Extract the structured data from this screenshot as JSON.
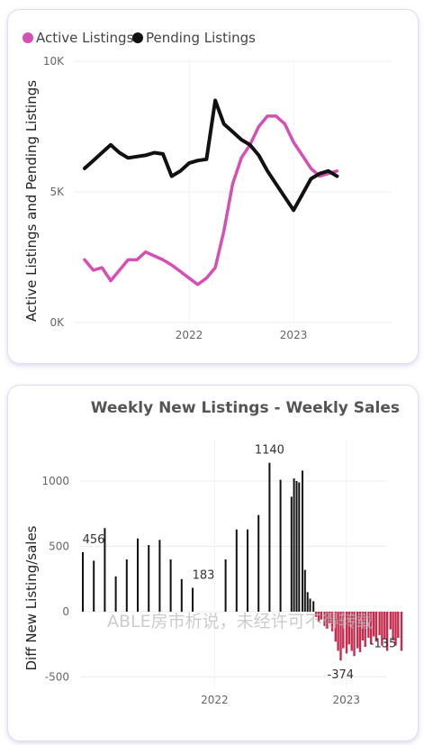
{
  "chart_data": [
    {
      "type": "line",
      "legend": [
        "Active Listings",
        "Pending Listings"
      ],
      "legend_position": "top-left",
      "xlabel": "",
      "ylabel": "Active Listings and Pending Listings",
      "ylim": [
        0,
        10000
      ],
      "yticks": [
        0,
        5000,
        10000
      ],
      "ytick_labels": [
        "0K",
        "5K",
        "10K"
      ],
      "xticks": [
        "2022",
        "2023"
      ],
      "grid": true,
      "series": [
        {
          "name": "Active Listings",
          "color": "#d64fb4",
          "points": [
            [
              "2021-01-01",
              2400
            ],
            [
              "2021-02-01",
              2000
            ],
            [
              "2021-03-01",
              2100
            ],
            [
              "2021-04-01",
              1600
            ],
            [
              "2021-05-01",
              2000
            ],
            [
              "2021-06-01",
              2400
            ],
            [
              "2021-07-01",
              2400
            ],
            [
              "2021-08-01",
              2700
            ],
            [
              "2021-09-01",
              2550
            ],
            [
              "2021-10-01",
              2400
            ],
            [
              "2021-11-01",
              2200
            ],
            [
              "2021-12-01",
              1950
            ],
            [
              "2022-01-01",
              1700
            ],
            [
              "2022-02-01",
              1450
            ],
            [
              "2022-03-01",
              1700
            ],
            [
              "2022-04-01",
              2100
            ],
            [
              "2022-05-01",
              3500
            ],
            [
              "2022-06-01",
              5300
            ],
            [
              "2022-07-01",
              6300
            ],
            [
              "2022-08-01",
              6800
            ],
            [
              "2022-09-01",
              7500
            ],
            [
              "2022-10-01",
              7900
            ],
            [
              "2022-11-01",
              7900
            ],
            [
              "2022-12-01",
              7600
            ],
            [
              "2023-01-01",
              6900
            ],
            [
              "2023-02-01",
              6400
            ],
            [
              "2023-03-01",
              5900
            ],
            [
              "2023-04-01",
              5600
            ],
            [
              "2023-05-01",
              5700
            ],
            [
              "2023-06-01",
              5800
            ]
          ]
        },
        {
          "name": "Pending Listings",
          "color": "#111111",
          "points": [
            [
              "2021-01-01",
              5900
            ],
            [
              "2021-02-01",
              6200
            ],
            [
              "2021-03-01",
              6500
            ],
            [
              "2021-04-01",
              6800
            ],
            [
              "2021-05-01",
              6500
            ],
            [
              "2021-06-01",
              6300
            ],
            [
              "2021-07-01",
              6350
            ],
            [
              "2021-08-01",
              6400
            ],
            [
              "2021-09-01",
              6500
            ],
            [
              "2021-10-01",
              6450
            ],
            [
              "2021-11-01",
              5600
            ],
            [
              "2021-12-01",
              5800
            ],
            [
              "2022-01-01",
              6100
            ],
            [
              "2022-02-01",
              6200
            ],
            [
              "2022-03-01",
              6250
            ],
            [
              "2022-04-01",
              8500
            ],
            [
              "2022-05-01",
              7600
            ],
            [
              "2022-06-01",
              7300
            ],
            [
              "2022-07-01",
              7000
            ],
            [
              "2022-08-01",
              6800
            ],
            [
              "2022-09-01",
              6400
            ],
            [
              "2022-10-01",
              5800
            ],
            [
              "2022-11-01",
              5300
            ],
            [
              "2022-12-01",
              4800
            ],
            [
              "2023-01-01",
              4300
            ],
            [
              "2023-02-01",
              4900
            ],
            [
              "2023-03-01",
              5500
            ],
            [
              "2023-04-01",
              5700
            ],
            [
              "2023-05-01",
              5800
            ],
            [
              "2023-06-01",
              5600
            ]
          ]
        }
      ]
    },
    {
      "type": "bar",
      "title": "Weekly New Listings - Weekly Sales",
      "xlabel": "",
      "ylabel": "Diff New Listing/sales",
      "ylim": [
        -600,
        1200
      ],
      "yticks": [
        -500,
        0,
        500,
        1000
      ],
      "xticks": [
        "2022",
        "2023"
      ],
      "grid": true,
      "positive_color": "#111111",
      "negative_color": "#c42c4e",
      "data_labels": [
        "456",
        "183",
        "1140",
        "-374",
        "-135"
      ],
      "bars": [
        [
          "2021-01-01",
          456
        ],
        [
          "2021-02-01",
          390
        ],
        [
          "2021-03-01",
          640
        ],
        [
          "2021-04-01",
          270
        ],
        [
          "2021-05-01",
          400
        ],
        [
          "2021-06-01",
          560
        ],
        [
          "2021-07-01",
          510
        ],
        [
          "2021-08-01",
          550
        ],
        [
          "2021-09-01",
          400
        ],
        [
          "2021-10-01",
          250
        ],
        [
          "2021-11-01",
          183
        ],
        [
          "2021-12-01",
          0
        ],
        [
          "2022-01-01",
          0
        ],
        [
          "2022-02-01",
          400
        ],
        [
          "2022-03-01",
          630
        ],
        [
          "2022-04-01",
          630
        ],
        [
          "2022-05-01",
          740
        ],
        [
          "2022-06-01",
          1140
        ],
        [
          "2022-07-01",
          1010
        ],
        [
          "2022-08-01",
          880
        ],
        [
          "2022-08-08",
          1020
        ],
        [
          "2022-08-15",
          1000
        ],
        [
          "2022-08-22",
          990
        ],
        [
          "2022-09-01",
          1080
        ],
        [
          "2022-09-08",
          320
        ],
        [
          "2022-09-15",
          150
        ],
        [
          "2022-09-22",
          100
        ],
        [
          "2022-10-01",
          80
        ],
        [
          "2022-10-08",
          -40
        ],
        [
          "2022-10-15",
          -80
        ],
        [
          "2022-10-22",
          -60
        ],
        [
          "2022-11-01",
          -110
        ],
        [
          "2022-11-08",
          -130
        ],
        [
          "2022-11-15",
          -90
        ],
        [
          "2022-11-22",
          -150
        ],
        [
          "2022-12-01",
          -230
        ],
        [
          "2022-12-08",
          -300
        ],
        [
          "2022-12-15",
          -374
        ],
        [
          "2022-12-22",
          -280
        ],
        [
          "2023-01-01",
          -320
        ],
        [
          "2023-01-08",
          -250
        ],
        [
          "2023-01-15",
          -300
        ],
        [
          "2023-01-22",
          -340
        ],
        [
          "2023-02-01",
          -280
        ],
        [
          "2023-02-08",
          -310
        ],
        [
          "2023-02-15",
          -220
        ],
        [
          "2023-02-22",
          -270
        ],
        [
          "2023-03-01",
          -200
        ],
        [
          "2023-03-08",
          -250
        ],
        [
          "2023-03-15",
          -190
        ],
        [
          "2023-03-22",
          -230
        ],
        [
          "2023-04-01",
          -180
        ],
        [
          "2023-04-08",
          -260
        ],
        [
          "2023-04-15",
          -210
        ],
        [
          "2023-04-22",
          -300
        ],
        [
          "2023-05-01",
          -135
        ],
        [
          "2023-05-08",
          -220
        ],
        [
          "2023-05-15",
          -260
        ],
        [
          "2023-05-22",
          -200
        ],
        [
          "2023-06-01",
          -300
        ]
      ]
    }
  ],
  "watermark": "ABLE房市析说，未经许可不得转载"
}
